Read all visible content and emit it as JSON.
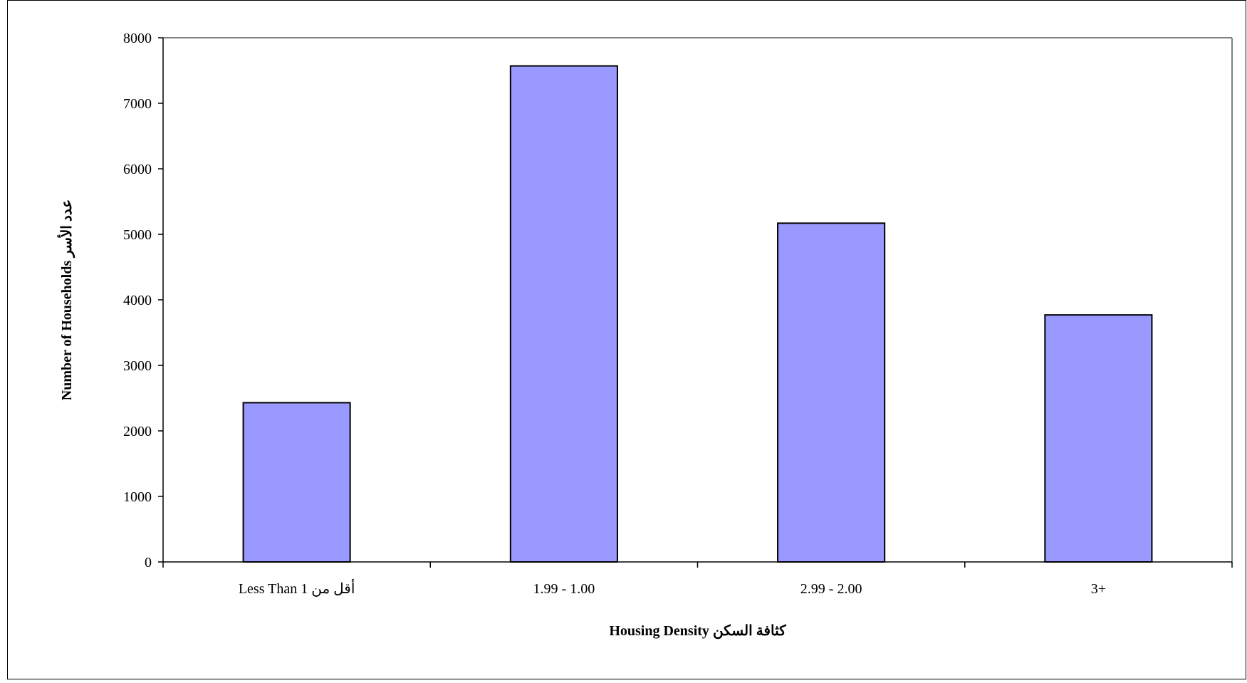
{
  "chart_data": {
    "type": "bar",
    "title": "",
    "xlabel": "Housing Density  كثافة السكن",
    "ylabel": "Number of Households  عدد الأسر",
    "categories": [
      "Less Than 1  أقل من",
      "1.99 - 1.00",
      "2.99 - 2.00",
      "3+"
    ],
    "values": [
      2430,
      7570,
      5170,
      3770
    ],
    "ylim": [
      0,
      8000
    ],
    "yticks": [
      0,
      1000,
      2000,
      3000,
      4000,
      5000,
      6000,
      7000,
      8000
    ],
    "grid": false,
    "legend": "none",
    "bar_color": "#9999ff",
    "bar_edge_color": "#000000",
    "plot_border_color": "#808080"
  }
}
